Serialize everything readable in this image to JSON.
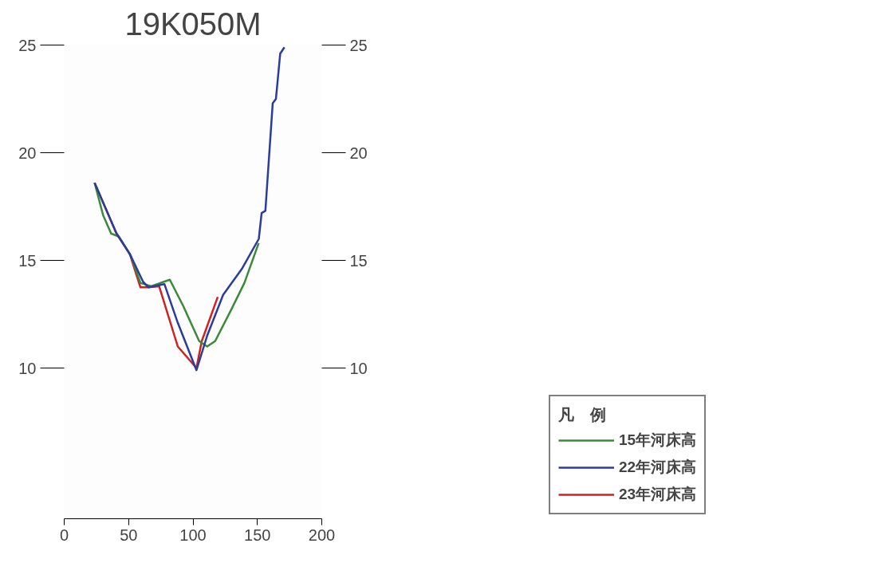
{
  "chart_data": {
    "type": "line",
    "title": "19K050M",
    "legend_title": "凡　例",
    "xlim": [
      0,
      200
    ],
    "xticks": [
      0,
      50,
      100,
      150,
      200
    ],
    "ylim": [
      3,
      25
    ],
    "yticks": [
      10,
      15,
      20,
      25
    ],
    "y2lim": [
      3,
      25
    ],
    "y2ticks": [
      10,
      15,
      20,
      25
    ],
    "grid": false,
    "legend": "right",
    "marker": "none",
    "line_style": "solid",
    "series": [
      {
        "name": "15年河床高",
        "color": "#3a8a3a",
        "x": [
          23.6,
          30.2,
          36.4,
          42.6,
          51.8,
          59.2,
          67.5,
          82,
          92.3,
          104.8,
          111,
          117.2,
          129.6,
          139.9,
          151
        ],
        "values": [
          18.6,
          17.1,
          16.25,
          16.1,
          15.2,
          13.95,
          13.8,
          14.1,
          12.9,
          11.25,
          11.0,
          11.25,
          12.7,
          13.95,
          15.8
        ]
      },
      {
        "name": "22年河床高",
        "color": "#2a3c9e",
        "x": [
          23.6,
          40.6,
          50.9,
          61.3,
          65.4,
          77.8,
          88.2,
          102.7,
          111,
          123.4,
          137.9,
          151.1,
          153.3,
          156.2,
          161.9,
          164.4,
          167.7,
          171
        ],
        "values": [
          18.6,
          16.25,
          15.3,
          14.0,
          13.75,
          13.9,
          12.1,
          9.9,
          11.5,
          13.4,
          14.6,
          16.0,
          17.2,
          17.3,
          22.3,
          22.5,
          24.6,
          24.9
        ]
      },
      {
        "name": "23年河床高",
        "color": "#d02020",
        "x": [
          23.6,
          40.6,
          50.9,
          59.2,
          65.4,
          73.7,
          88.2,
          102.7,
          106.8,
          119.2
        ],
        "values": [
          18.6,
          16.25,
          15.3,
          13.75,
          13.75,
          13.8,
          11.0,
          10.0,
          11.25,
          13.3
        ]
      }
    ]
  }
}
